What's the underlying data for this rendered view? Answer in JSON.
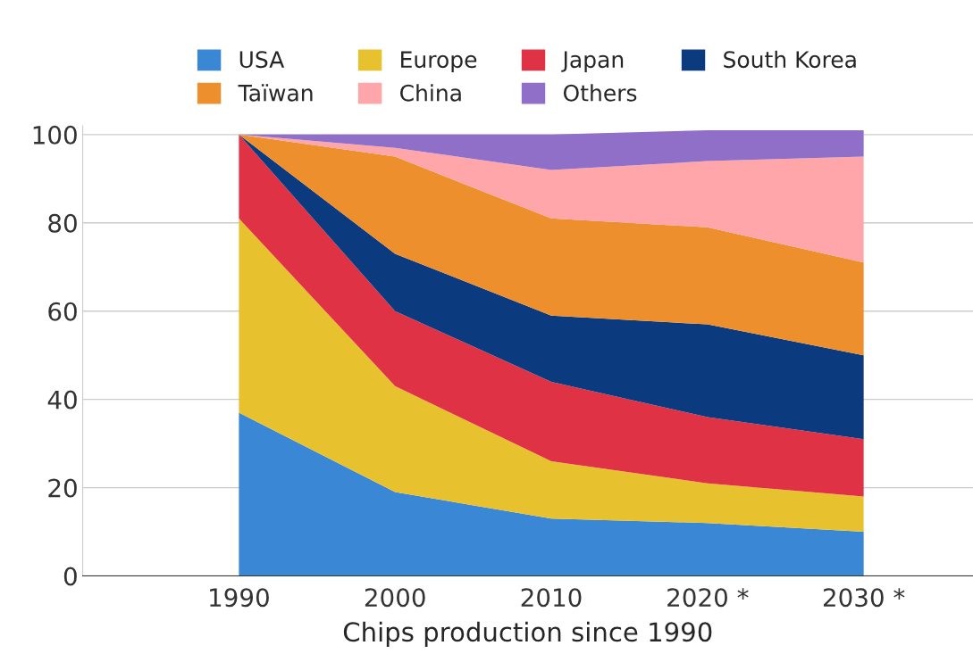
{
  "chart_data": {
    "type": "area",
    "stacked": true,
    "xlabel": "Chips production since 1990",
    "categories": [
      "1990",
      "2000",
      "2010",
      "2020 *",
      "2030 *"
    ],
    "series": [
      {
        "name": "USA",
        "color": "#3a87d6",
        "values": [
          37,
          19,
          13,
          12,
          10
        ]
      },
      {
        "name": "Europe",
        "color": "#e8c22e",
        "values": [
          44,
          24,
          13,
          9,
          8
        ]
      },
      {
        "name": "Japan",
        "color": "#e03245",
        "values": [
          19,
          17,
          18,
          15,
          13
        ]
      },
      {
        "name": "South Korea",
        "color": "#0c3a7e",
        "values": [
          0,
          13,
          15,
          21,
          19
        ]
      },
      {
        "name": "Taïwan",
        "color": "#ee8f2e",
        "values": [
          0,
          22,
          22,
          22,
          21
        ]
      },
      {
        "name": "China",
        "color": "#ffa6aa",
        "values": [
          0,
          2,
          11,
          15,
          24
        ]
      },
      {
        "name": "Others",
        "color": "#8f6fc7",
        "values": [
          0,
          3,
          8,
          7,
          6
        ]
      }
    ],
    "ylim": [
      0,
      102
    ],
    "yticks": [
      0,
      20,
      40,
      60,
      80,
      100
    ],
    "grid": "y",
    "legend": "top"
  }
}
